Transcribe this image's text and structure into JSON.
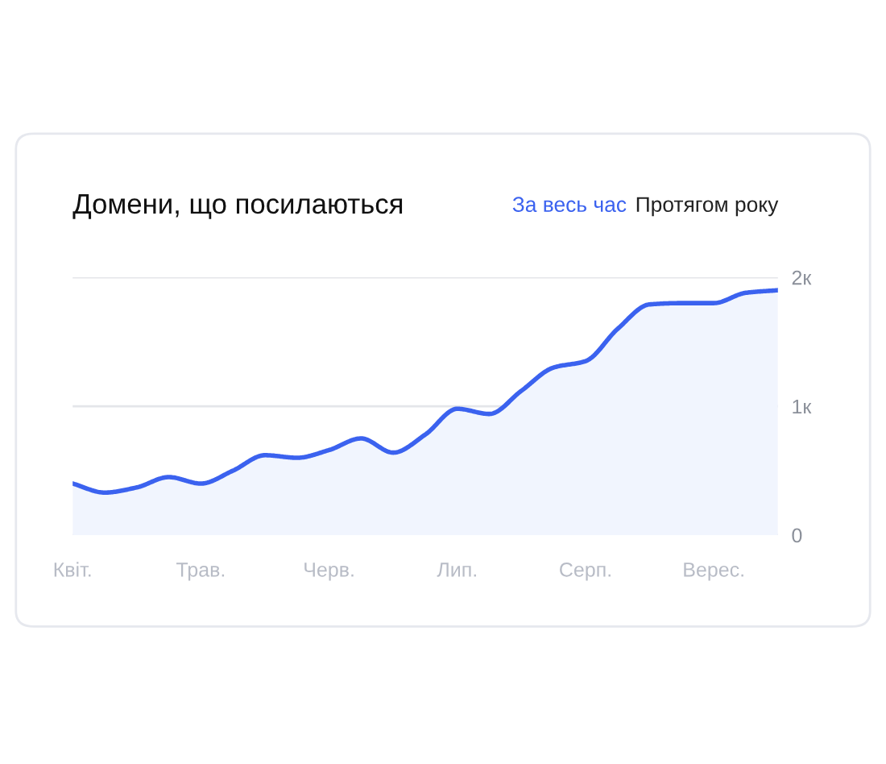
{
  "chart_data": {
    "type": "area",
    "title": "Домени, що посилаються",
    "annotations": [
      "За весь час",
      "Протягом року"
    ],
    "categories": [
      "Квіт.",
      null,
      null,
      null,
      "Трав.",
      null,
      null,
      null,
      "Черв.",
      null,
      null,
      null,
      "Лип.",
      null,
      null,
      null,
      "Серп.",
      null,
      null,
      null,
      "Верес.",
      null,
      null
    ],
    "series": [
      {
        "color": "#3b62ef",
        "values": [
          0.4,
          0.33,
          0.37,
          0.45,
          0.4,
          0.5,
          0.62,
          0.6,
          0.66,
          0.75,
          0.64,
          0.78,
          0.98,
          0.94,
          1.12,
          1.3,
          1.35,
          1.6,
          1.79,
          1.8,
          1.8,
          1.88,
          1.9
        ]
      }
    ],
    "ylim": [
      0,
      2
    ],
    "yticks": [
      0,
      {
        "value": 1,
        "label": "1к"
      },
      {
        "value": 2,
        "label": "2к"
      }
    ],
    "grid": "y"
  }
}
